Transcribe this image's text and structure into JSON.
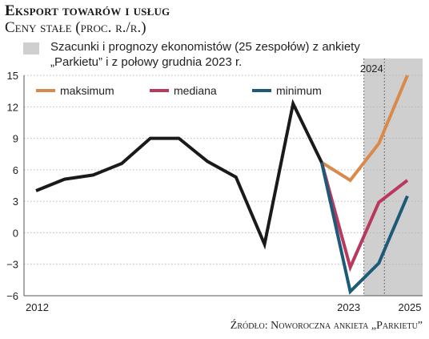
{
  "header": {
    "title": "Eksport towarów i usług",
    "subtitle": "Ceny stałe (proc. r./r.)",
    "note_line1": "Szacunki i prognozy ekonomistów (25 zespołów) z ankiety",
    "note_line2": "„Parkietu” i z połowy grudnia 2023 r.",
    "source": "Źródło: Noworoczna ankieta „Parkietu”"
  },
  "chart_data": {
    "type": "line",
    "x": [
      2012,
      2013,
      2014,
      2015,
      2016,
      2017,
      2018,
      2019,
      2020,
      2021,
      2022,
      2023,
      2024,
      2025
    ],
    "x_tick_labels": [
      {
        "x": 2012,
        "label": "2012"
      },
      {
        "x": 2023,
        "label": "2023"
      },
      {
        "x": 2024,
        "label": "2024"
      },
      {
        "x": 2025,
        "label": "2025"
      }
    ],
    "ylim": [
      -6,
      15
    ],
    "yticks": [
      -6,
      -3,
      0,
      3,
      6,
      9,
      12,
      15
    ],
    "shaded_region": {
      "x_from": 2023,
      "x_to": 2025
    },
    "series": [
      {
        "name": "",
        "color": "#1a1a1a",
        "points": [
          [
            2012,
            4.0
          ],
          [
            2013,
            5.1
          ],
          [
            2014,
            5.5
          ],
          [
            2015,
            6.6
          ],
          [
            2016,
            9.0
          ],
          [
            2017,
            9.0
          ],
          [
            2018,
            6.8
          ],
          [
            2019,
            5.3
          ],
          [
            2020,
            -1.1
          ],
          [
            2021,
            12.3
          ],
          [
            2022,
            6.7
          ]
        ]
      },
      {
        "name": "maksimum",
        "color": "#d9894a",
        "points": [
          [
            2022,
            6.7
          ],
          [
            2023,
            5.0
          ],
          [
            2024,
            8.5
          ],
          [
            2025,
            15.0
          ]
        ]
      },
      {
        "name": "mediana",
        "color": "#b8385e",
        "points": [
          [
            2022,
            6.7
          ],
          [
            2023,
            -3.3
          ],
          [
            2024,
            2.9
          ],
          [
            2025,
            5.0
          ]
        ]
      },
      {
        "name": "minimum",
        "color": "#1c5a78",
        "points": [
          [
            2022,
            6.7
          ],
          [
            2023,
            -5.6
          ],
          [
            2024,
            -2.9
          ],
          [
            2025,
            3.5
          ]
        ]
      }
    ]
  }
}
